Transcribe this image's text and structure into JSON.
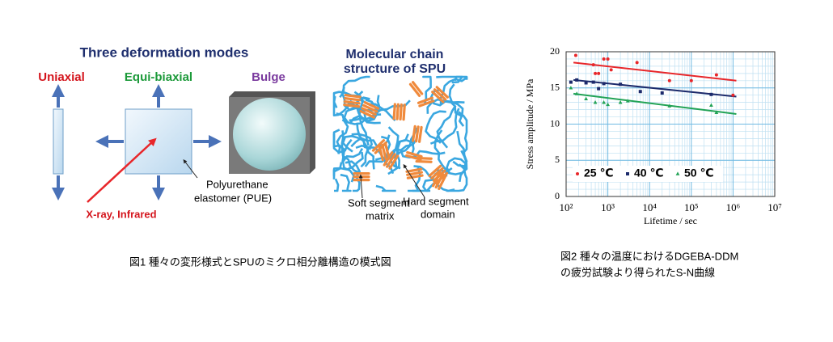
{
  "figure1": {
    "title": "Three deformation modes",
    "modes": [
      "Uniaxial",
      "Equi-biaxial",
      "Bulge"
    ],
    "material_lines": [
      "Polyurethane",
      "elastomer  (PUE)"
    ],
    "probe": "X-ray, Infrared",
    "structure_title_lines": [
      "Molecular chain",
      "structure of SPU"
    ],
    "soft_lines": [
      "Soft segment",
      "matrix"
    ],
    "hard_lines": [
      "Hard segment",
      "domain"
    ],
    "caption": "図1 種々の変形様式とSPUのミクロ相分離構造の模式図"
  },
  "figure2": {
    "caption_lines": [
      "図2 種々の温度におけるDGEBA-DDM",
      "の疲労試験より得られたS-N曲線"
    ]
  },
  "chart_data": {
    "type": "scatter",
    "x_label": "Lifetime / sec",
    "y_label": "Stress amplitude / MPa",
    "x_log": true,
    "xlim": [
      100,
      10000000
    ],
    "xticks": [
      {
        "value": 100,
        "label": "10²"
      },
      {
        "value": 1000,
        "label": "10³"
      },
      {
        "value": 10000,
        "label": "10⁴"
      },
      {
        "value": 100000,
        "label": "10⁵"
      },
      {
        "value": 1000000,
        "label": "10⁶"
      },
      {
        "value": 10000000,
        "label": "10⁷"
      }
    ],
    "ylim": [
      0,
      20
    ],
    "yticks": [
      0,
      5,
      10,
      15,
      20
    ],
    "grid": true,
    "legend": "lower-left",
    "series": [
      {
        "name": "25 ℃",
        "color": "#e8262a",
        "marker": "circle",
        "x": [
          170,
          450,
          500,
          600,
          800,
          1000,
          1200,
          5000,
          30000,
          100000,
          400000,
          1000000
        ],
        "values": [
          19.5,
          18.2,
          17.0,
          17.0,
          19.0,
          19.0,
          17.5,
          18.5,
          16.0,
          16.0,
          16.8,
          14.0
        ]
      },
      {
        "name": "40 ℃",
        "color": "#1c2a6b",
        "marker": "square",
        "x": [
          130,
          180,
          300,
          450,
          600,
          800,
          2000,
          6000,
          20000,
          300000
        ],
        "values": [
          15.8,
          16.1,
          15.7,
          15.8,
          14.9,
          15.6,
          15.5,
          14.5,
          14.3,
          14.1
        ]
      },
      {
        "name": "50 ℃",
        "color": "#22a356",
        "marker": "triangle",
        "x": [
          130,
          180,
          300,
          500,
          800,
          1000,
          2000,
          3000,
          30000,
          300000,
          400000
        ],
        "values": [
          15.0,
          14.2,
          13.5,
          13.0,
          13.0,
          12.7,
          13.0,
          13.2,
          12.5,
          12.6,
          11.6
        ]
      }
    ],
    "fits": [
      {
        "color": "#e8262a",
        "x": [
          150,
          1200000
        ],
        "values": [
          18.5,
          16.0
        ]
      },
      {
        "color": "#1c2a6b",
        "x": [
          150,
          1200000
        ],
        "values": [
          16.1,
          13.8
        ]
      },
      {
        "color": "#22a356",
        "x": [
          150,
          1200000
        ],
        "values": [
          14.2,
          11.4
        ]
      }
    ]
  }
}
